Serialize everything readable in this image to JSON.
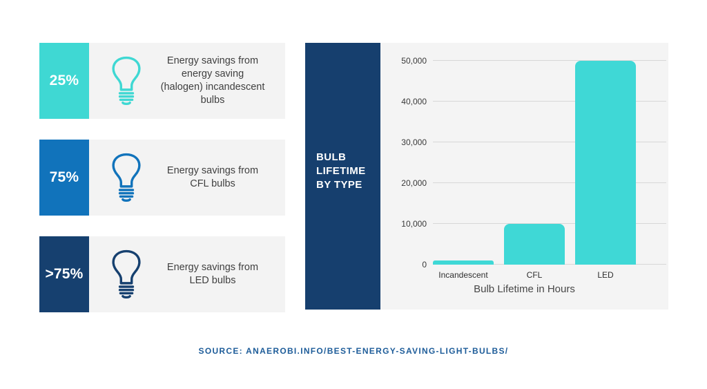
{
  "stats": [
    {
      "value": "25%",
      "description": "Energy savings from energy saving (halogen) incandescent bulbs",
      "color": "#3fd8d3"
    },
    {
      "value": "75%",
      "description": "Energy savings from CFL bulbs",
      "color": "#1173bb"
    },
    {
      "value": ">75%",
      "description": "Energy savings from LED bulbs",
      "color": "#16406f"
    }
  ],
  "chart_panel": {
    "side_label": "BULB\nLIFETIME\nBY TYPE"
  },
  "chart_data": {
    "type": "bar",
    "categories": [
      "Incandescent",
      "CFL",
      "LED"
    ],
    "values": [
      1000,
      10000,
      50000
    ],
    "title": "Bulb Lifetime in Hours",
    "xlabel": "Bulb Lifetime in Hours",
    "ylabel": "",
    "ylim": [
      0,
      50000
    ],
    "yticks": [
      0,
      10000,
      20000,
      30000,
      40000,
      50000
    ],
    "ytick_labels": [
      "0",
      "10,000",
      "20,000",
      "30,000",
      "40,000",
      "50,000"
    ],
    "bar_color": "#3fd8d6",
    "grid": true,
    "legend": false
  },
  "source": {
    "label": "SOURCE: ANAEROBI.INFO/BEST-ENERGY-SAVING-LIGHT-BULBS/"
  }
}
